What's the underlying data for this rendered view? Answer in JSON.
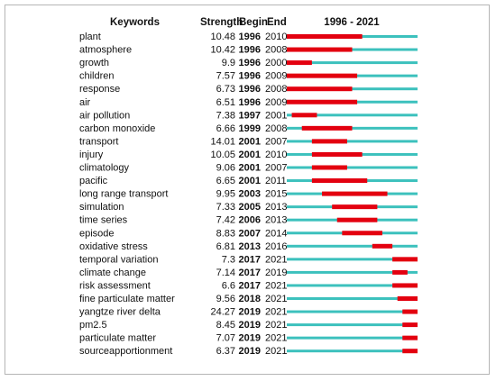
{
  "chart_data": {
    "type": "table",
    "headers": {
      "keywords": "Keywords",
      "strength": "Strength",
      "begin": "Begin",
      "end": "End",
      "period": "1996 - 2021"
    },
    "range": [
      1996,
      2021
    ],
    "colors": {
      "timeline": "#3cc1bd",
      "burst": "#e3000f"
    },
    "rows": [
      {
        "keyword": "plant",
        "strength": "10.48",
        "begin": 1996,
        "end": 2010
      },
      {
        "keyword": "atmosphere",
        "strength": "10.42",
        "begin": 1996,
        "end": 2008
      },
      {
        "keyword": "growth",
        "strength": "9.9",
        "begin": 1996,
        "end": 2000
      },
      {
        "keyword": "children",
        "strength": "7.57",
        "begin": 1996,
        "end": 2009
      },
      {
        "keyword": "response",
        "strength": "6.73",
        "begin": 1996,
        "end": 2008
      },
      {
        "keyword": "air",
        "strength": "6.51",
        "begin": 1996,
        "end": 2009
      },
      {
        "keyword": "air pollution",
        "strength": "7.38",
        "begin": 1997,
        "end": 2001
      },
      {
        "keyword": "carbon monoxide",
        "strength": "6.66",
        "begin": 1999,
        "end": 2008
      },
      {
        "keyword": "transport",
        "strength": "14.01",
        "begin": 2001,
        "end": 2007
      },
      {
        "keyword": "injury",
        "strength": "10.05",
        "begin": 2001,
        "end": 2010
      },
      {
        "keyword": "climatology",
        "strength": "9.06",
        "begin": 2001,
        "end": 2007
      },
      {
        "keyword": "pacific",
        "strength": "6.65",
        "begin": 2001,
        "end": 2011
      },
      {
        "keyword": "long range transport",
        "strength": "9.95",
        "begin": 2003,
        "end": 2015
      },
      {
        "keyword": "simulation",
        "strength": "7.33",
        "begin": 2005,
        "end": 2013
      },
      {
        "keyword": "time series",
        "strength": "7.42",
        "begin": 2006,
        "end": 2013
      },
      {
        "keyword": "episode",
        "strength": "8.83",
        "begin": 2007,
        "end": 2014
      },
      {
        "keyword": "oxidative stress",
        "strength": "6.81",
        "begin": 2013,
        "end": 2016
      },
      {
        "keyword": "temporal variation",
        "strength": "7.3",
        "begin": 2017,
        "end": 2021
      },
      {
        "keyword": "climate change",
        "strength": "7.14",
        "begin": 2017,
        "end": 2019
      },
      {
        "keyword": "risk assessment",
        "strength": "6.6",
        "begin": 2017,
        "end": 2021
      },
      {
        "keyword": "fine particulate matter",
        "strength": "9.56",
        "begin": 2018,
        "end": 2021
      },
      {
        "keyword": "yangtze river delta",
        "strength": "24.27",
        "begin": 2019,
        "end": 2021
      },
      {
        "keyword": "pm2.5",
        "strength": "8.45",
        "begin": 2019,
        "end": 2021
      },
      {
        "keyword": "particulate matter",
        "strength": "7.07",
        "begin": 2019,
        "end": 2021
      },
      {
        "keyword": "sourceapportionment",
        "strength": "6.37",
        "begin": 2019,
        "end": 2021
      }
    ]
  }
}
